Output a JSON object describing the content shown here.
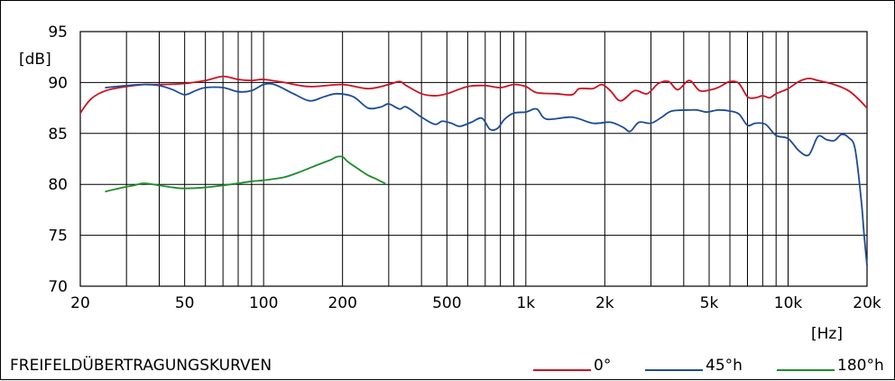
{
  "chart_data": {
    "type": "line",
    "title": "FREIFELDÜBERTRAGUNGSKURVEN",
    "ylabel": "[dB]",
    "xlabel": "[Hz]",
    "xscale": "log",
    "xlim": [
      20,
      20000
    ],
    "ylim": [
      70,
      95
    ],
    "grid": true,
    "legend_position": "bottom-right",
    "x_ticks": [
      {
        "value": 20,
        "label": "20"
      },
      {
        "value": 50,
        "label": "50"
      },
      {
        "value": 100,
        "label": "100"
      },
      {
        "value": 200,
        "label": "200"
      },
      {
        "value": 500,
        "label": "500"
      },
      {
        "value": 1000,
        "label": "1k"
      },
      {
        "value": 2000,
        "label": "2k"
      },
      {
        "value": 5000,
        "label": "5k"
      },
      {
        "value": 10000,
        "label": "10k"
      },
      {
        "value": 20000,
        "label": "20k"
      }
    ],
    "x_minor_gridlines": [
      30,
      40,
      60,
      70,
      80,
      90,
      300,
      400,
      600,
      700,
      800,
      900,
      3000,
      4000,
      6000,
      7000,
      8000,
      9000
    ],
    "y_ticks": [
      70,
      75,
      80,
      85,
      90,
      95
    ],
    "series": [
      {
        "name": "0°",
        "color": "#cc1122",
        "points": [
          [
            20,
            87.0
          ],
          [
            22,
            88.4
          ],
          [
            25,
            89.2
          ],
          [
            30,
            89.6
          ],
          [
            35,
            89.8
          ],
          [
            40,
            89.8
          ],
          [
            50,
            89.9
          ],
          [
            60,
            90.2
          ],
          [
            70,
            90.6
          ],
          [
            80,
            90.3
          ],
          [
            90,
            90.2
          ],
          [
            100,
            90.3
          ],
          [
            120,
            90.0
          ],
          [
            150,
            89.6
          ],
          [
            200,
            89.8
          ],
          [
            250,
            89.4
          ],
          [
            300,
            89.8
          ],
          [
            330,
            90.1
          ],
          [
            350,
            89.7
          ],
          [
            400,
            88.9
          ],
          [
            450,
            88.7
          ],
          [
            500,
            88.9
          ],
          [
            600,
            89.6
          ],
          [
            700,
            89.7
          ],
          [
            800,
            89.5
          ],
          [
            900,
            89.8
          ],
          [
            1000,
            89.6
          ],
          [
            1100,
            89.0
          ],
          [
            1300,
            88.9
          ],
          [
            1500,
            88.8
          ],
          [
            1600,
            89.4
          ],
          [
            1800,
            89.4
          ],
          [
            1950,
            89.8
          ],
          [
            2100,
            89.2
          ],
          [
            2300,
            88.2
          ],
          [
            2600,
            89.2
          ],
          [
            2900,
            88.9
          ],
          [
            3200,
            89.9
          ],
          [
            3500,
            90.1
          ],
          [
            3800,
            89.3
          ],
          [
            4200,
            90.2
          ],
          [
            4600,
            89.2
          ],
          [
            5100,
            89.3
          ],
          [
            5500,
            89.6
          ],
          [
            6000,
            90.1
          ],
          [
            6500,
            89.9
          ],
          [
            7000,
            88.6
          ],
          [
            7500,
            88.5
          ],
          [
            8000,
            88.7
          ],
          [
            8500,
            88.5
          ],
          [
            9000,
            88.9
          ],
          [
            10000,
            89.4
          ],
          [
            11000,
            90.1
          ],
          [
            12000,
            90.4
          ],
          [
            13000,
            90.2
          ],
          [
            15000,
            89.8
          ],
          [
            17000,
            89.2
          ],
          [
            18500,
            88.4
          ],
          [
            20000,
            87.5
          ]
        ]
      },
      {
        "name": "45°h",
        "color": "#1e4b96",
        "points": [
          [
            25,
            89.5
          ],
          [
            30,
            89.7
          ],
          [
            35,
            89.8
          ],
          [
            40,
            89.7
          ],
          [
            45,
            89.3
          ],
          [
            50,
            88.8
          ],
          [
            55,
            89.2
          ],
          [
            60,
            89.5
          ],
          [
            70,
            89.5
          ],
          [
            80,
            89.1
          ],
          [
            90,
            89.2
          ],
          [
            100,
            89.8
          ],
          [
            110,
            89.8
          ],
          [
            130,
            88.9
          ],
          [
            150,
            88.2
          ],
          [
            170,
            88.6
          ],
          [
            190,
            88.9
          ],
          [
            220,
            88.6
          ],
          [
            250,
            87.5
          ],
          [
            280,
            87.6
          ],
          [
            300,
            87.9
          ],
          [
            330,
            87.4
          ],
          [
            350,
            87.6
          ],
          [
            400,
            86.6
          ],
          [
            450,
            85.9
          ],
          [
            480,
            86.2
          ],
          [
            520,
            86.0
          ],
          [
            560,
            85.7
          ],
          [
            620,
            86.1
          ],
          [
            680,
            86.5
          ],
          [
            730,
            85.4
          ],
          [
            780,
            85.5
          ],
          [
            830,
            86.4
          ],
          [
            900,
            87.0
          ],
          [
            1000,
            87.1
          ],
          [
            1100,
            87.4
          ],
          [
            1200,
            86.4
          ],
          [
            1500,
            86.6
          ],
          [
            1800,
            86.0
          ],
          [
            2100,
            86.1
          ],
          [
            2350,
            85.6
          ],
          [
            2500,
            85.2
          ],
          [
            2700,
            86.1
          ],
          [
            3000,
            86.0
          ],
          [
            3300,
            86.6
          ],
          [
            3600,
            87.2
          ],
          [
            4200,
            87.3
          ],
          [
            4500,
            87.3
          ],
          [
            4900,
            87.1
          ],
          [
            5400,
            87.3
          ],
          [
            6000,
            87.2
          ],
          [
            6500,
            86.9
          ],
          [
            7000,
            85.8
          ],
          [
            7500,
            86.0
          ],
          [
            8200,
            85.9
          ],
          [
            9000,
            84.8
          ],
          [
            10000,
            84.5
          ],
          [
            11000,
            83.3
          ],
          [
            12000,
            82.9
          ],
          [
            13000,
            84.7
          ],
          [
            14000,
            84.4
          ],
          [
            15000,
            84.3
          ],
          [
            16000,
            84.9
          ],
          [
            17000,
            84.6
          ],
          [
            18000,
            83.5
          ],
          [
            19000,
            78.5
          ],
          [
            19500,
            75.0
          ],
          [
            20000,
            72.0
          ]
        ]
      },
      {
        "name": "180°h",
        "color": "#1e8c2d",
        "points": [
          [
            25,
            79.3
          ],
          [
            28,
            79.6
          ],
          [
            32,
            79.9
          ],
          [
            35,
            80.1
          ],
          [
            40,
            79.9
          ],
          [
            45,
            79.7
          ],
          [
            50,
            79.6
          ],
          [
            60,
            79.7
          ],
          [
            70,
            79.9
          ],
          [
            80,
            80.1
          ],
          [
            90,
            80.3
          ],
          [
            100,
            80.4
          ],
          [
            120,
            80.7
          ],
          [
            140,
            81.3
          ],
          [
            160,
            81.9
          ],
          [
            180,
            82.4
          ],
          [
            190,
            82.7
          ],
          [
            200,
            82.7
          ],
          [
            210,
            82.2
          ],
          [
            230,
            81.5
          ],
          [
            250,
            80.9
          ],
          [
            270,
            80.5
          ],
          [
            290,
            80.1
          ]
        ]
      }
    ]
  }
}
